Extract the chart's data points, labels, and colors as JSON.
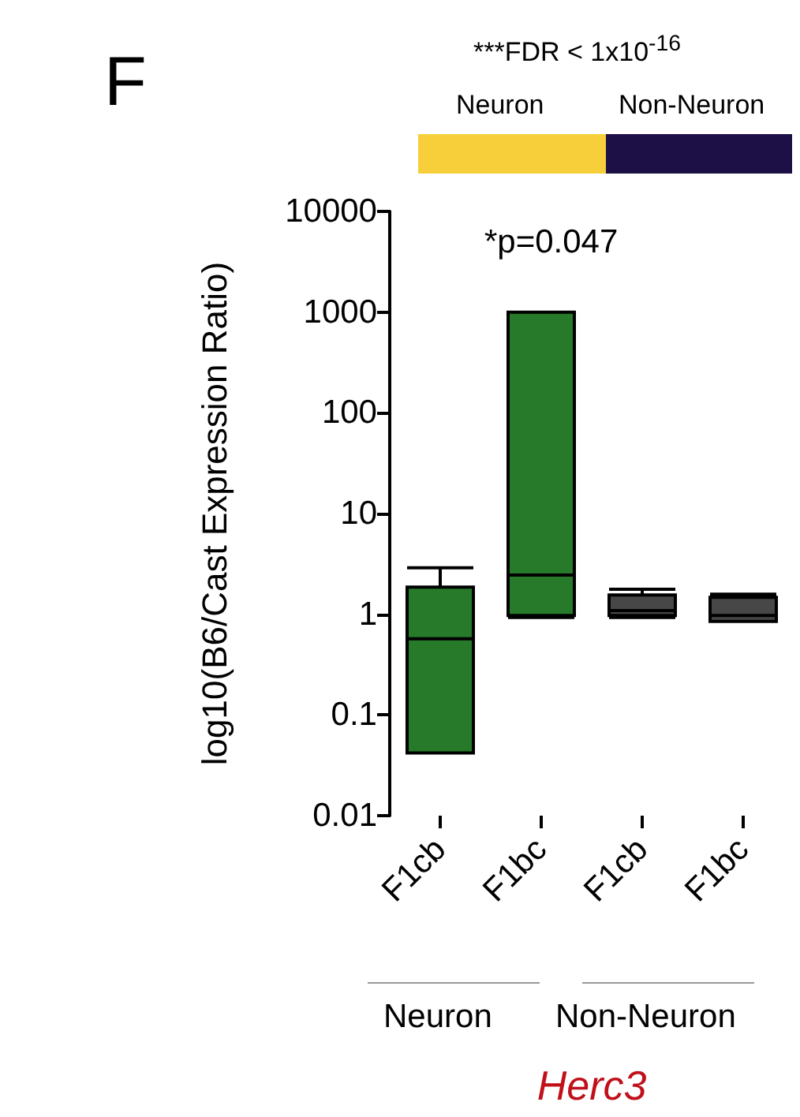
{
  "chart_data": {
    "type": "box",
    "categories": [
      "F1cb",
      "F1bc",
      "F1cb",
      "F1bc"
    ],
    "series": [
      {
        "color": "#267a29",
        "boxes": [
          {
            "low": 0.042,
            "q1": 0.042,
            "median": 0.57,
            "q3": 1.86,
            "high": 2.9
          },
          {
            "low": 0.93,
            "q1": 0.97,
            "median": 2.45,
            "q3": 1000,
            "high": 1000
          },
          null,
          null
        ]
      },
      {
        "color": "#474747",
        "boxes": [
          null,
          null,
          {
            "low": 0.93,
            "q1": 0.97,
            "median": 1.09,
            "q3": 1.55,
            "high": 1.77
          },
          {
            "low": 0.85,
            "q1": 0.85,
            "median": 0.97,
            "q3": 1.47,
            "high": 1.58
          }
        ]
      }
    ],
    "ylabel": "log10(B6/Cast Expression Ratio)",
    "xlabel": "Herc3",
    "log": true,
    "ylim": [
      0.01,
      10000
    ],
    "yticks": [
      0.01,
      0.1,
      1,
      10,
      100,
      1000,
      10000
    ],
    "grid": false,
    "annotations": [
      "F",
      "***FDR < 1x10$^{-16}$",
      "Neuron",
      "Non-Neuron",
      "*p=0.047",
      "Neuron",
      "Non-Neuron"
    ]
  }
}
